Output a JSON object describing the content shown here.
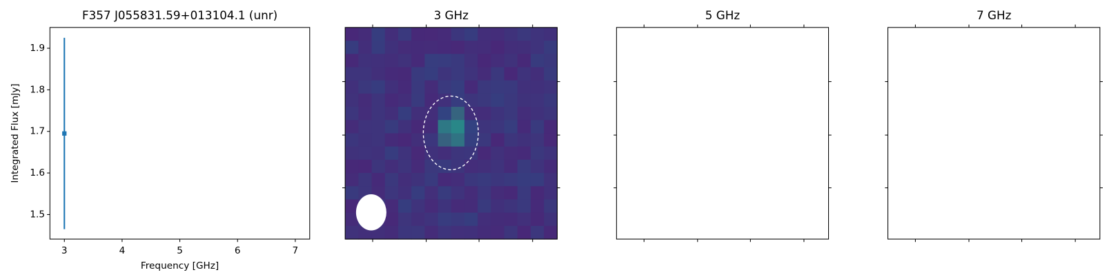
{
  "chart_data": [
    {
      "type": "errorbar",
      "title": "F357 J055831.59+013104.1 (unr)",
      "xlabel": "Frequency [GHz]",
      "ylabel": "Integrated Flux [mJy]",
      "x": [
        3
      ],
      "values": [
        1.695
      ],
      "errors": [
        0.23
      ],
      "color": "#1f77b4",
      "xlim": [
        2.75,
        7.25
      ],
      "ylim": [
        1.441,
        1.95
      ],
      "xticks": [
        3,
        4,
        5,
        6,
        7
      ],
      "yticks": [
        {
          "value": 1.5,
          "label": "1.5"
        },
        {
          "value": 1.6,
          "label": "1.6"
        },
        {
          "value": 1.7,
          "label": "1.7"
        },
        {
          "value": 1.8,
          "label": "1.8"
        },
        {
          "value": 1.9,
          "label": "1.9"
        }
      ]
    },
    {
      "type": "image",
      "title": "3 GHz"
    },
    {
      "type": "empty",
      "title": "5 GHz"
    },
    {
      "type": "empty",
      "title": "7 GHz"
    }
  ]
}
